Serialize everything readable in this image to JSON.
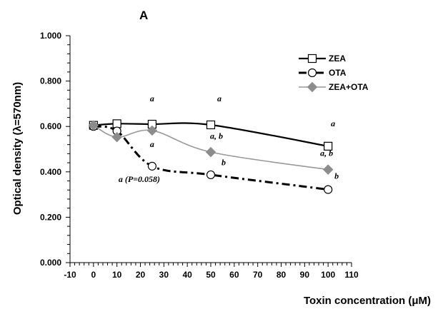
{
  "chart_data": {
    "type": "line",
    "title": "A",
    "xlabel": "Toxin concentration (μM)",
    "ylabel": "Optical density (λ=570nm)",
    "xlim": [
      -10,
      110
    ],
    "ylim": [
      0,
      1
    ],
    "x_ticks": [
      "-10",
      "0",
      "10",
      "20",
      "30",
      "40",
      "50",
      "60",
      "70",
      "80",
      "90",
      "100",
      "110"
    ],
    "y_ticks": [
      "0.000",
      "0.200",
      "0.400",
      "0.600",
      "0.800",
      "1.000"
    ],
    "grid": false,
    "legend_position": "top-right",
    "series": [
      {
        "name": "ZEA",
        "color": "#000000",
        "style": "solid",
        "marker": "square-open",
        "x": [
          0,
          10,
          25,
          50,
          100
        ],
        "y": [
          0.605,
          0.612,
          0.61,
          0.607,
          0.513
        ]
      },
      {
        "name": "OTA",
        "color": "#000000",
        "style": "dash-dot",
        "marker": "circle-open",
        "x": [
          0,
          10,
          25,
          50,
          100
        ],
        "y": [
          0.6,
          0.58,
          0.425,
          0.387,
          0.322
        ]
      },
      {
        "name": "ZEA+OTA",
        "color": "#999999",
        "style": "solid",
        "marker": "diamond-filled",
        "x": [
          0,
          10,
          25,
          50,
          100
        ],
        "y": [
          0.605,
          0.553,
          0.582,
          0.487,
          0.41
        ]
      }
    ],
    "annotations": [
      {
        "text": "a",
        "x": 25,
        "y": 0.71
      },
      {
        "text": "a",
        "x": 50,
        "y": 0.71
      },
      {
        "text": "a",
        "x": 100,
        "y": 0.6
      },
      {
        "text": "a",
        "x": 25,
        "y": 0.51
      },
      {
        "text": "a, b",
        "x": 50,
        "y": 0.545
      },
      {
        "text": "a, b",
        "x": 100,
        "y": 0.47
      },
      {
        "text": "b",
        "x": 50,
        "y": 0.43
      },
      {
        "text": "b",
        "x": 100,
        "y": 0.37
      },
      {
        "text": "a (P=0.058)",
        "x": 25,
        "y": 0.355
      }
    ]
  }
}
